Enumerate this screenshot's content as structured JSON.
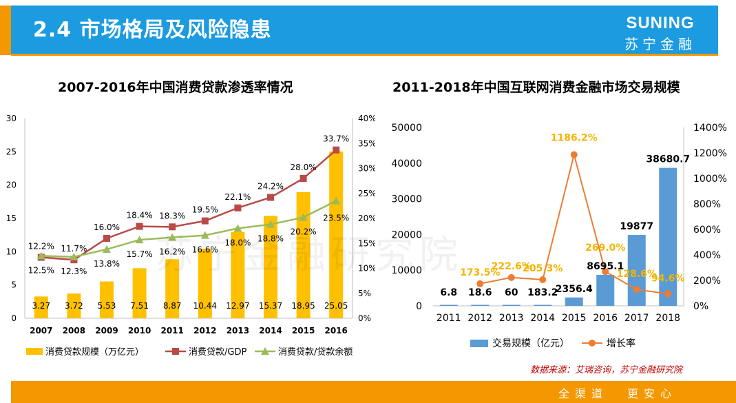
{
  "header": {
    "title": "2.4  市场格局及风险隐患",
    "brand_en": "SUNING",
    "brand_cn": "苏宁金融"
  },
  "watermark": "苏宁金融研究院",
  "source": "数据来源：艾瑞咨询，苏宁金融研究院",
  "footer": {
    "slogan_left": "全渠道",
    "slogan_right": "更安心"
  },
  "colors": {
    "header_blue": "#1C9BE0",
    "accent_orange": "#F39800",
    "bar_yellow": "#FFC000",
    "line_red": "#B94A48",
    "line_green": "#9BBB59",
    "bar_blue": "#5B9BD5",
    "line_orange": "#ED7D31",
    "label_orange": "#F4B400"
  },
  "chart_data": [
    {
      "type": "bar",
      "title": "2007-2016年中国消费贷款渗透率情况",
      "categories": [
        "2007",
        "2008",
        "2009",
        "2010",
        "2011",
        "2012",
        "2013",
        "2014",
        "2015",
        "2016"
      ],
      "series": [
        {
          "name": "消费贷款规模（万亿元）",
          "kind": "bar",
          "axis": "left",
          "values": [
            3.27,
            3.72,
            5.53,
            7.51,
            8.87,
            10.44,
            12.97,
            15.37,
            18.95,
            25.05
          ],
          "labels": [
            "3.27",
            "3.72",
            "5.53",
            "7.51",
            "8.87",
            "10.44",
            "12.97",
            "15.37",
            "18.95",
            "25.05"
          ]
        },
        {
          "name": "消费贷款/GDP",
          "kind": "line",
          "axis": "right",
          "values": [
            12.2,
            11.7,
            16.0,
            18.4,
            18.3,
            19.5,
            22.1,
            24.2,
            28.0,
            33.7
          ],
          "labels": [
            "12.2%",
            "11.7%",
            "16.0%",
            "18.4%",
            "18.3%",
            "19.5%",
            "22.1%",
            "24.2%",
            "28.0%",
            "33.7%"
          ]
        },
        {
          "name": "消费贷款/贷款余额",
          "kind": "line",
          "axis": "right",
          "values": [
            12.5,
            12.3,
            13.8,
            15.7,
            16.2,
            16.6,
            18.0,
            18.8,
            20.2,
            23.5
          ],
          "labels": [
            "12.5%",
            "12.3%",
            "13.8%",
            "15.7%",
            "16.2%",
            "16.6%",
            "18.0%",
            "18.8%",
            "20.2%",
            "23.5%"
          ]
        }
      ],
      "ylim": [
        0,
        30
      ],
      "y_ticks": [
        "0",
        "5",
        "10",
        "15",
        "20",
        "25",
        "30"
      ],
      "y2lim": [
        0,
        40
      ],
      "y2_ticks": [
        "0%",
        "5%",
        "10%",
        "15%",
        "20%",
        "25%",
        "30%",
        "35%",
        "40%"
      ],
      "legend": "bottom"
    },
    {
      "type": "bar",
      "title": "2011-2018年中国互联网消费金融市场交易规模",
      "categories": [
        "2011",
        "2012",
        "2013",
        "2014",
        "2015",
        "2016",
        "2017",
        "2018"
      ],
      "series": [
        {
          "name": "交易规模（亿元）",
          "kind": "bar",
          "axis": "left",
          "values": [
            6.8,
            18.6,
            60,
            183.2,
            2356.4,
            8695.1,
            19877,
            38680.7
          ],
          "labels": [
            "6.8",
            "18.6",
            "60",
            "183.2",
            "2356.4",
            "8695.1",
            "19877",
            "38680.7"
          ]
        },
        {
          "name": "增长率",
          "kind": "line",
          "axis": "right",
          "values": [
            null,
            173.5,
            222.6,
            205.3,
            1186.2,
            269.0,
            128.6,
            94.6
          ],
          "labels": [
            "",
            "173.5%",
            "222.6%",
            "205.3%",
            "1186.2%",
            "269.0%",
            "128.6%",
            "94.6%"
          ]
        }
      ],
      "ylim": [
        0,
        50000
      ],
      "y_ticks": [
        "0",
        "10000",
        "20000",
        "30000",
        "40000",
        "50000"
      ],
      "y2lim": [
        0,
        1400
      ],
      "y2_ticks": [
        "0%",
        "200%",
        "400%",
        "600%",
        "800%",
        "1000%",
        "1200%",
        "1400%"
      ],
      "legend": "bottom"
    }
  ]
}
